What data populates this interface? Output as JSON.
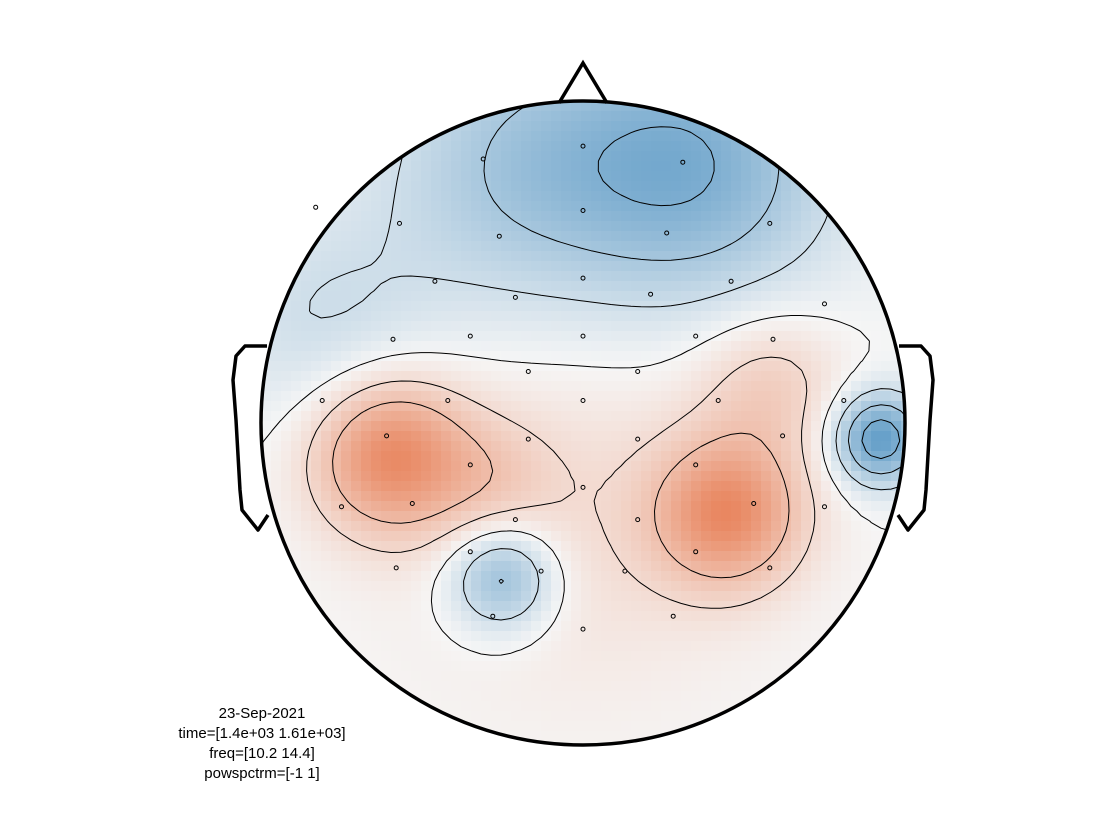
{
  "chart_data": {
    "type": "heatmap",
    "subtype": "scalp-topography",
    "caption_lines": [
      "23-Sep-2021",
      "time=[1.4e+03 1.61e+03]",
      "freq=[10.2 14.4]",
      "powspctrm=[-1 1]"
    ],
    "color_limits": [
      -1,
      1
    ],
    "colormap": {
      "negative": "#2f7fb8",
      "neutral": "#f6f6f6",
      "positive": "#e56a3a"
    },
    "contour_levels": [
      -0.6,
      -0.4,
      -0.2,
      0.0,
      0.2,
      0.4
    ],
    "sources": [
      {
        "x": -0.6,
        "y": -0.1,
        "value": 0.75,
        "spread": 0.17
      },
      {
        "x": -0.28,
        "y": -0.18,
        "value": 0.18,
        "spread": 0.14
      },
      {
        "x": 0.45,
        "y": -0.28,
        "value": 0.7,
        "spread": 0.16
      },
      {
        "x": 0.58,
        "y": 0.12,
        "value": 0.28,
        "spread": 0.16
      },
      {
        "x": 0.0,
        "y": -0.25,
        "value": 0.2,
        "spread": 0.4
      },
      {
        "x": -0.25,
        "y": -0.48,
        "value": -0.55,
        "spread": 0.12
      },
      {
        "x": 0.92,
        "y": -0.05,
        "value": -0.75,
        "spread": 0.1
      },
      {
        "x": 0.35,
        "y": 0.8,
        "value": -0.55,
        "spread": 0.3
      },
      {
        "x": -0.2,
        "y": 0.8,
        "value": -0.35,
        "spread": 0.3
      },
      {
        "x": -0.8,
        "y": 0.3,
        "value": -0.2,
        "spread": 0.25
      },
      {
        "x": 0.0,
        "y": 0.25,
        "value": -0.05,
        "spread": 0.5
      }
    ],
    "electrodes": [
      [
        0.0,
        0.86
      ],
      [
        -0.31,
        0.82
      ],
      [
        0.31,
        0.81
      ],
      [
        -0.57,
        0.62
      ],
      [
        -0.26,
        0.58
      ],
      [
        0.0,
        0.66
      ],
      [
        0.26,
        0.59
      ],
      [
        0.58,
        0.62
      ],
      [
        -0.83,
        0.67
      ],
      [
        -0.46,
        0.44
      ],
      [
        -0.21,
        0.39
      ],
      [
        0.0,
        0.45
      ],
      [
        0.21,
        0.4
      ],
      [
        0.46,
        0.44
      ],
      [
        0.75,
        0.37
      ],
      [
        -0.59,
        0.26
      ],
      [
        -0.35,
        0.27
      ],
      [
        0.0,
        0.27
      ],
      [
        0.35,
        0.27
      ],
      [
        0.59,
        0.26
      ],
      [
        -0.17,
        0.16
      ],
      [
        0.17,
        0.16
      ],
      [
        -0.81,
        0.07
      ],
      [
        -0.61,
        -0.04
      ],
      [
        -0.42,
        0.07
      ],
      [
        0.0,
        0.07
      ],
      [
        0.42,
        0.07
      ],
      [
        0.62,
        -0.04
      ],
      [
        0.81,
        0.07
      ],
      [
        -0.17,
        -0.05
      ],
      [
        0.17,
        -0.05
      ],
      [
        -0.35,
        -0.13
      ],
      [
        0.0,
        -0.2
      ],
      [
        0.35,
        -0.13
      ],
      [
        -0.75,
        -0.26
      ],
      [
        -0.53,
        -0.25
      ],
      [
        -0.21,
        -0.3
      ],
      [
        0.17,
        -0.3
      ],
      [
        0.53,
        -0.25
      ],
      [
        0.75,
        -0.26
      ],
      [
        -0.35,
        -0.4
      ],
      [
        0.35,
        -0.4
      ],
      [
        -0.58,
        -0.45
      ],
      [
        -0.13,
        -0.46
      ],
      [
        0.13,
        -0.46
      ],
      [
        0.58,
        -0.45
      ],
      [
        -0.28,
        -0.6
      ],
      [
        0.0,
        -0.64
      ],
      [
        0.28,
        -0.6
      ]
    ]
  }
}
